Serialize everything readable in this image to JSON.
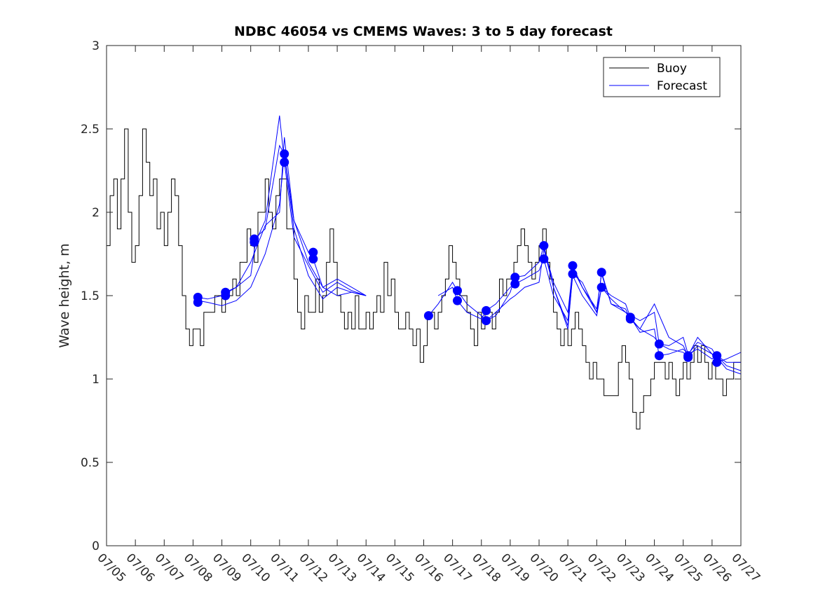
{
  "chart_data": {
    "type": "line",
    "title": "NDBC 46054 vs CMEMS Waves: 3 to 5 day forecast",
    "xlabel": "",
    "ylabel": "Wave height, m",
    "xlim": [
      "07/05",
      "07/27"
    ],
    "ylim": [
      0,
      3
    ],
    "x_ticks": [
      "07/05",
      "07/06",
      "07/07",
      "07/08",
      "07/09",
      "07/10",
      "07/11",
      "07/12",
      "07/13",
      "07/14",
      "07/15",
      "07/16",
      "07/17",
      "07/18",
      "07/19",
      "07/20",
      "07/21",
      "07/22",
      "07/23",
      "07/24",
      "07/25",
      "07/26",
      "07/27"
    ],
    "y_ticks": [
      "0",
      "0.5",
      "1",
      "1.5",
      "2",
      "2.5",
      "3"
    ],
    "grid": false,
    "legend_position": "top-right",
    "legend": [
      "Buoy",
      "Forecast"
    ],
    "colors": {
      "buoy": "#000000",
      "forecast": "#0000ff"
    },
    "buoy": {
      "name": "Buoy",
      "x": [
        "07/05 00:00",
        "07/05 03:00",
        "07/05 06:00",
        "07/05 09:00",
        "07/05 12:00",
        "07/05 15:00",
        "07/05 18:00",
        "07/05 21:00",
        "07/06 00:00",
        "07/06 03:00",
        "07/06 06:00",
        "07/06 09:00",
        "07/06 12:00",
        "07/06 15:00",
        "07/06 18:00",
        "07/06 21:00",
        "07/07 00:00",
        "07/07 03:00",
        "07/07 06:00",
        "07/07 09:00",
        "07/07 12:00",
        "07/07 15:00",
        "07/07 18:00",
        "07/07 21:00",
        "07/08 00:00",
        "07/08 03:00",
        "07/08 06:00",
        "07/08 09:00",
        "07/08 12:00",
        "07/08 15:00",
        "07/08 18:00",
        "07/08 21:00",
        "07/09 00:00",
        "07/09 03:00",
        "07/09 06:00",
        "07/09 09:00",
        "07/09 12:00",
        "07/09 15:00",
        "07/09 18:00",
        "07/09 21:00",
        "07/10 00:00",
        "07/10 03:00",
        "07/10 06:00",
        "07/10 09:00",
        "07/10 12:00",
        "07/10 15:00",
        "07/10 18:00",
        "07/10 21:00",
        "07/11 00:00",
        "07/11 03:00",
        "07/11 06:00",
        "07/11 09:00",
        "07/11 12:00",
        "07/11 15:00",
        "07/11 18:00",
        "07/11 21:00",
        "07/12 00:00",
        "07/12 03:00",
        "07/12 06:00",
        "07/12 09:00",
        "07/12 12:00",
        "07/12 15:00",
        "07/12 18:00",
        "07/12 21:00",
        "07/13 00:00",
        "07/13 03:00",
        "07/13 06:00",
        "07/13 09:00",
        "07/13 12:00",
        "07/13 15:00",
        "07/13 18:00",
        "07/13 21:00",
        "07/14 00:00",
        "07/14 03:00",
        "07/14 06:00",
        "07/14 09:00",
        "07/14 12:00",
        "07/14 15:00",
        "07/14 18:00",
        "07/14 21:00",
        "07/15 00:00",
        "07/15 03:00",
        "07/15 06:00",
        "07/15 09:00",
        "07/15 12:00",
        "07/15 15:00",
        "07/15 18:00",
        "07/15 21:00",
        "07/16 00:00",
        "07/16 03:00",
        "07/16 06:00",
        "07/16 09:00",
        "07/16 12:00",
        "07/16 15:00",
        "07/16 18:00",
        "07/16 21:00",
        "07/17 00:00",
        "07/17 03:00",
        "07/17 06:00",
        "07/17 09:00",
        "07/17 12:00",
        "07/17 15:00",
        "07/17 18:00",
        "07/17 21:00",
        "07/18 00:00",
        "07/18 03:00",
        "07/18 06:00",
        "07/18 09:00",
        "07/18 12:00",
        "07/18 15:00",
        "07/18 18:00",
        "07/18 21:00",
        "07/19 00:00",
        "07/19 03:00",
        "07/19 06:00",
        "07/19 09:00",
        "07/19 12:00",
        "07/19 15:00",
        "07/19 18:00",
        "07/19 21:00",
        "07/20 00:00",
        "07/20 03:00",
        "07/20 06:00",
        "07/20 09:00",
        "07/20 12:00",
        "07/20 15:00",
        "07/20 18:00",
        "07/20 21:00",
        "07/21 00:00",
        "07/21 03:00",
        "07/21 06:00",
        "07/21 09:00",
        "07/21 12:00",
        "07/21 15:00",
        "07/21 18:00",
        "07/21 21:00",
        "07/22 00:00",
        "07/22 03:00",
        "07/22 06:00",
        "07/22 09:00",
        "07/22 12:00",
        "07/22 15:00",
        "07/22 18:00",
        "07/22 21:00",
        "07/23 00:00",
        "07/23 03:00",
        "07/23 06:00",
        "07/23 09:00",
        "07/23 12:00",
        "07/23 15:00",
        "07/23 18:00",
        "07/23 21:00",
        "07/24 00:00",
        "07/24 03:00",
        "07/24 06:00",
        "07/24 09:00",
        "07/24 12:00",
        "07/24 15:00",
        "07/24 18:00",
        "07/24 21:00",
        "07/25 00:00",
        "07/25 03:00",
        "07/25 06:00",
        "07/25 09:00",
        "07/25 12:00",
        "07/25 15:00",
        "07/25 18:00",
        "07/25 21:00",
        "07/26 00:00",
        "07/26 03:00",
        "07/26 06:00",
        "07/26 09:00",
        "07/26 12:00",
        "07/26 15:00",
        "07/26 18:00",
        "07/26 21:00",
        "07/27 00:00"
      ],
      "values": [
        1.8,
        2.1,
        2.2,
        1.9,
        2.2,
        2.5,
        2.0,
        1.7,
        1.8,
        2.1,
        2.5,
        2.3,
        2.1,
        2.2,
        1.9,
        2.0,
        1.8,
        2.0,
        2.2,
        2.1,
        1.8,
        1.5,
        1.3,
        1.2,
        1.3,
        1.3,
        1.2,
        1.4,
        1.4,
        1.4,
        1.5,
        1.5,
        1.4,
        1.5,
        1.5,
        1.6,
        1.5,
        1.7,
        1.7,
        1.9,
        1.8,
        1.7,
        2.0,
        2.0,
        2.2,
        2.0,
        1.9,
        2.1,
        2.2,
        2.2,
        1.9,
        1.9,
        1.6,
        1.4,
        1.3,
        1.5,
        1.4,
        1.4,
        1.6,
        1.4,
        1.5,
        1.7,
        1.9,
        1.7,
        1.5,
        1.4,
        1.3,
        1.4,
        1.3,
        1.5,
        1.3,
        1.3,
        1.4,
        1.3,
        1.4,
        1.5,
        1.4,
        1.7,
        1.5,
        1.6,
        1.4,
        1.3,
        1.3,
        1.4,
        1.3,
        1.2,
        1.3,
        1.1,
        1.2,
        1.4,
        1.4,
        1.3,
        1.4,
        1.5,
        1.6,
        1.8,
        1.7,
        1.6,
        1.5,
        1.5,
        1.4,
        1.3,
        1.2,
        1.4,
        1.3,
        1.4,
        1.4,
        1.3,
        1.4,
        1.6,
        1.5,
        1.6,
        1.6,
        1.7,
        1.8,
        1.9,
        1.8,
        1.7,
        1.6,
        1.7,
        1.8,
        1.9,
        1.7,
        1.6,
        1.4,
        1.3,
        1.2,
        1.3,
        1.2,
        1.3,
        1.4,
        1.3,
        1.2,
        1.1,
        1.0,
        1.1,
        1.0,
        1.0,
        0.9,
        0.9,
        0.9,
        0.9,
        1.1,
        1.2,
        1.1,
        1.0,
        0.8,
        0.7,
        0.8,
        0.9,
        0.9,
        1.0,
        1.1,
        1.1,
        1.1,
        1.0,
        1.1,
        1.0,
        0.9,
        1.0,
        1.1,
        1.0,
        1.1,
        1.2,
        1.1,
        1.2,
        1.1,
        1.0,
        1.1,
        1.0,
        1.0,
        0.9,
        1.0,
        1.0,
        1.1,
        1.1,
        1.0
      ]
    },
    "forecast_series": [
      {
        "x": [
          "07/08 04:00",
          "07/08 12:00",
          "07/09 00:00",
          "07/09 12:00",
          "07/10 00:00",
          "07/10 12:00",
          "07/11 00:00",
          "07/11 04:00",
          "07/11 12:00",
          "07/12 00:00",
          "07/12 12:00",
          "07/13 00:00",
          "07/13 12:00",
          "07/14 00:00"
        ],
        "values": [
          1.47,
          1.46,
          1.44,
          1.47,
          1.55,
          1.75,
          2.05,
          2.35,
          1.9,
          1.62,
          1.48,
          1.55,
          1.52,
          1.5
        ]
      },
      {
        "x": [
          "07/08 04:00",
          "07/08 12:00",
          "07/09 00:00",
          "07/09 12:00",
          "07/10 00:00",
          "07/10 12:00",
          "07/11 00:00",
          "07/11 04:00",
          "07/11 12:00",
          "07/12 00:00",
          "07/12 12:00",
          "07/13 00:00",
          "07/13 12:00",
          "07/14 00:00"
        ],
        "values": [
          1.49,
          1.48,
          1.5,
          1.55,
          1.7,
          1.92,
          2.0,
          2.45,
          1.95,
          1.7,
          1.55,
          1.6,
          1.55,
          1.5
        ]
      },
      {
        "x": [
          "07/09 03:00",
          "07/09 12:00",
          "07/10 00:00",
          "07/10 04:00",
          "07/10 12:00",
          "07/11 00:00",
          "07/11 04:00",
          "07/11 12:00",
          "07/12 00:00",
          "07/12 12:00",
          "07/13 00:00",
          "07/13 12:00",
          "07/14 00:00"
        ],
        "values": [
          1.52,
          1.55,
          1.62,
          1.82,
          1.95,
          2.58,
          2.3,
          1.85,
          1.68,
          1.52,
          1.58,
          1.53,
          1.5
        ]
      },
      {
        "x": [
          "07/10 03:00",
          "07/10 12:00",
          "07/11 00:00",
          "07/11 04:00",
          "07/11 12:00",
          "07/12 00:00",
          "07/12 04:00",
          "07/12 12:00",
          "07/13 00:00",
          "07/13 12:00",
          "07/14 00:00"
        ],
        "values": [
          1.84,
          1.9,
          2.4,
          2.35,
          1.95,
          1.76,
          1.72,
          1.55,
          1.5,
          1.52,
          1.5
        ]
      },
      {
        "x": [
          "07/16 04:00",
          "07/16 12:00",
          "07/17 00:00",
          "07/17 04:00",
          "07/17 12:00",
          "07/18 00:00",
          "07/18 04:00",
          "07/18 12:00",
          "07/19 00:00",
          "07/19 04:00",
          "07/19 12:00",
          "07/20 00:00",
          "07/20 04:00",
          "07/20 12:00",
          "07/21 00:00",
          "07/21 04:00",
          "07/21 12:00",
          "07/22 00:00",
          "07/22 04:00",
          "07/22 12:00",
          "07/23 00:00",
          "07/23 04:00",
          "07/23 12:00",
          "07/24 00:00",
          "07/24 04:00",
          "07/24 12:00",
          "07/25 00:00",
          "07/25 04:00",
          "07/25 12:00",
          "07/26 00:00",
          "07/26 04:00",
          "07/26 12:00",
          "07/27 00:00"
        ],
        "values": [
          1.38,
          1.45,
          1.58,
          1.53,
          1.45,
          1.38,
          1.35,
          1.38,
          1.52,
          1.61,
          1.62,
          1.7,
          1.8,
          1.55,
          1.3,
          1.63,
          1.58,
          1.4,
          1.64,
          1.45,
          1.42,
          1.36,
          1.3,
          1.25,
          1.21,
          1.18,
          1.16,
          1.13,
          1.2,
          1.15,
          1.1,
          1.12,
          1.16
        ]
      },
      {
        "x": [
          "07/16 12:00",
          "07/17 00:00",
          "07/17 04:00",
          "07/17 12:00",
          "07/18 00:00",
          "07/18 04:00",
          "07/18 12:00",
          "07/19 00:00",
          "07/19 04:00",
          "07/19 12:00",
          "07/20 00:00",
          "07/20 04:00",
          "07/20 12:00",
          "07/21 00:00",
          "07/21 04:00",
          "07/21 12:00",
          "07/22 00:00",
          "07/22 04:00",
          "07/22 12:00",
          "07/23 00:00",
          "07/23 04:00",
          "07/23 12:00",
          "07/24 00:00",
          "07/24 04:00",
          "07/24 12:00",
          "07/25 00:00",
          "07/25 04:00",
          "07/25 12:00",
          "07/26 00:00",
          "07/26 04:00",
          "07/26 12:00",
          "07/27 00:00"
        ],
        "values": [
          1.5,
          1.55,
          1.47,
          1.4,
          1.36,
          1.41,
          1.45,
          1.55,
          1.57,
          1.6,
          1.65,
          1.72,
          1.5,
          1.35,
          1.68,
          1.55,
          1.4,
          1.55,
          1.5,
          1.45,
          1.37,
          1.28,
          1.3,
          1.14,
          1.15,
          1.18,
          1.15,
          1.18,
          1.12,
          1.14,
          1.08,
          1.05
        ]
      },
      {
        "x": [
          "07/18 00:00",
          "07/18 04:00",
          "07/18 12:00",
          "07/19 00:00",
          "07/19 04:00",
          "07/19 12:00",
          "07/20 00:00",
          "07/20 04:00",
          "07/20 12:00",
          "07/21 00:00",
          "07/21 04:00",
          "07/21 12:00",
          "07/22 00:00",
          "07/22 04:00",
          "07/22 12:00",
          "07/23 00:00",
          "07/23 12:00",
          "07/24 00:00",
          "07/24 04:00",
          "07/24 12:00",
          "07/25 00:00",
          "07/25 04:00",
          "07/25 12:00",
          "07/26 00:00",
          "07/26 04:00",
          "07/26 12:00",
          "07/27 00:00"
        ],
        "values": [
          1.38,
          1.35,
          1.4,
          1.48,
          1.5,
          1.55,
          1.58,
          1.78,
          1.55,
          1.32,
          1.62,
          1.5,
          1.38,
          1.55,
          1.48,
          1.4,
          1.35,
          1.4,
          1.21,
          1.2,
          1.25,
          1.15,
          1.22,
          1.18,
          1.13,
          1.06,
          1.03
        ]
      },
      {
        "x": [
          "07/20 04:00",
          "07/20 12:00",
          "07/21 00:00",
          "07/21 04:00",
          "07/21 12:00",
          "07/22 00:00",
          "07/22 04:00",
          "07/22 12:00",
          "07/23 00:00",
          "07/23 12:00",
          "07/24 00:00",
          "07/24 12:00",
          "07/25 00:00",
          "07/25 04:00",
          "07/25 12:00",
          "07/26 00:00",
          "07/26 04:00",
          "07/26 12:00",
          "07/27 00:00"
        ],
        "values": [
          1.79,
          1.58,
          1.4,
          1.66,
          1.55,
          1.42,
          1.63,
          1.45,
          1.4,
          1.3,
          1.45,
          1.25,
          1.2,
          1.14,
          1.25,
          1.15,
          1.14,
          1.1,
          1.1
        ]
      }
    ],
    "forecast_markers": [
      {
        "x": "07/08 04:00",
        "y": 1.49
      },
      {
        "x": "07/08 04:00",
        "y": 1.46
      },
      {
        "x": "07/09 03:00",
        "y": 1.52
      },
      {
        "x": "07/09 03:00",
        "y": 1.5
      },
      {
        "x": "07/10 03:00",
        "y": 1.84
      },
      {
        "x": "07/10 03:00",
        "y": 1.82
      },
      {
        "x": "07/11 04:00",
        "y": 2.35
      },
      {
        "x": "07/11 04:00",
        "y": 2.3
      },
      {
        "x": "07/12 04:00",
        "y": 1.76
      },
      {
        "x": "07/12 04:00",
        "y": 1.72
      },
      {
        "x": "07/16 04:00",
        "y": 1.38
      },
      {
        "x": "07/17 04:00",
        "y": 1.53
      },
      {
        "x": "07/17 04:00",
        "y": 1.47
      },
      {
        "x": "07/18 04:00",
        "y": 1.41
      },
      {
        "x": "07/18 04:00",
        "y": 1.35
      },
      {
        "x": "07/19 04:00",
        "y": 1.61
      },
      {
        "x": "07/19 04:00",
        "y": 1.57
      },
      {
        "x": "07/20 04:00",
        "y": 1.8
      },
      {
        "x": "07/20 04:00",
        "y": 1.72
      },
      {
        "x": "07/21 04:00",
        "y": 1.68
      },
      {
        "x": "07/21 04:00",
        "y": 1.63
      },
      {
        "x": "07/22 04:00",
        "y": 1.64
      },
      {
        "x": "07/22 04:00",
        "y": 1.55
      },
      {
        "x": "07/23 04:00",
        "y": 1.37
      },
      {
        "x": "07/23 04:00",
        "y": 1.36
      },
      {
        "x": "07/24 04:00",
        "y": 1.21
      },
      {
        "x": "07/24 04:00",
        "y": 1.14
      },
      {
        "x": "07/25 04:00",
        "y": 1.14
      },
      {
        "x": "07/25 04:00",
        "y": 1.13
      },
      {
        "x": "07/26 04:00",
        "y": 1.14
      },
      {
        "x": "07/26 04:00",
        "y": 1.1
      }
    ]
  }
}
